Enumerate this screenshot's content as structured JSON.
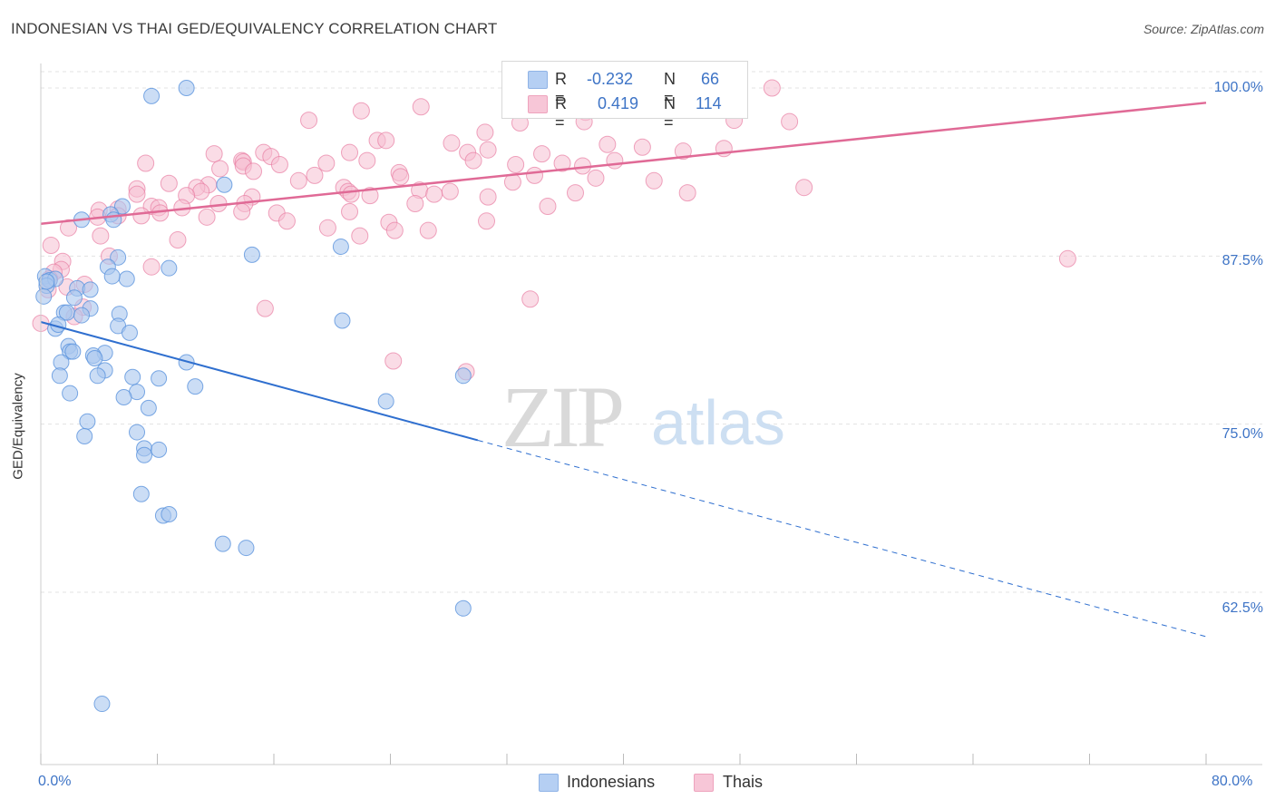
{
  "title": "INDONESIAN VS THAI GED/EQUIVALENCY CORRELATION CHART",
  "source": "Source: ZipAtlas.com",
  "watermark": {
    "zip": "ZIP",
    "atlas": "atlas"
  },
  "colors": {
    "blue": "#5b93dd",
    "blue_fill": "#a9c7ee",
    "blue_line": "#2f6fcf",
    "pink": "#e87ea3",
    "pink_fill": "#f5bfd2",
    "pink_line": "#e06a96",
    "axis_text": "#3e74c6",
    "grid": "#e3e3e3"
  },
  "legend": {
    "r_label": "R =",
    "n_label": "N =",
    "rows": [
      {
        "r": "-0.232",
        "n": "66"
      },
      {
        "r": "0.419",
        "n": "114"
      }
    ]
  },
  "chart_data": {
    "type": "scatter",
    "title": "INDONESIAN VS THAI GED/EQUIVALENCY CORRELATION CHART",
    "xlabel": "",
    "ylabel": "GED/Equivalency",
    "xlim": [
      0,
      80
    ],
    "ylim": [
      52,
      100.5
    ],
    "x_tick_labels": [
      "0.0%",
      "80.0%"
    ],
    "y_tick_values": [
      62.5,
      75,
      87.5,
      100
    ],
    "y_tick_labels": [
      "62.5%",
      "75.0%",
      "87.5%",
      "100.0%"
    ],
    "grid": "horizontal dashed",
    "legend_position": "top-center",
    "series": [
      {
        "name": "Indonesians",
        "color": "#5b93dd",
        "trend": {
          "x0": 0,
          "y0": 82.6,
          "x1": 30,
          "y1": 73.8,
          "dashed_to_x": 80,
          "dashed_to_y": 59.2
        },
        "points": [
          [
            7.6,
            99.4
          ],
          [
            10.0,
            100.0
          ],
          [
            12.6,
            92.8
          ],
          [
            5.6,
            91.2
          ],
          [
            4.8,
            90.6
          ],
          [
            2.8,
            90.2
          ],
          [
            5.0,
            90.2
          ],
          [
            14.5,
            87.6
          ],
          [
            20.6,
            88.2
          ],
          [
            5.3,
            87.4
          ],
          [
            4.6,
            86.7
          ],
          [
            8.8,
            86.6
          ],
          [
            0.3,
            86.0
          ],
          [
            0.6,
            85.7
          ],
          [
            1.0,
            85.8
          ],
          [
            5.9,
            85.8
          ],
          [
            4.9,
            86.0
          ],
          [
            0.4,
            85.3
          ],
          [
            2.5,
            85.1
          ],
          [
            3.4,
            85.0
          ],
          [
            0.2,
            84.5
          ],
          [
            2.3,
            84.4
          ],
          [
            3.4,
            83.6
          ],
          [
            1.6,
            83.3
          ],
          [
            1.8,
            83.3
          ],
          [
            2.8,
            83.1
          ],
          [
            5.4,
            83.2
          ],
          [
            20.7,
            82.7
          ],
          [
            5.3,
            82.3
          ],
          [
            1.0,
            82.1
          ],
          [
            6.1,
            81.8
          ],
          [
            1.9,
            80.8
          ],
          [
            2.0,
            80.4
          ],
          [
            2.2,
            80.4
          ],
          [
            4.4,
            80.3
          ],
          [
            3.6,
            80.1
          ],
          [
            3.7,
            79.9
          ],
          [
            1.4,
            79.6
          ],
          [
            10.0,
            79.6
          ],
          [
            4.4,
            79.0
          ],
          [
            1.3,
            78.6
          ],
          [
            3.9,
            78.6
          ],
          [
            6.3,
            78.5
          ],
          [
            8.1,
            78.4
          ],
          [
            29.0,
            78.6
          ],
          [
            10.6,
            77.8
          ],
          [
            2.0,
            77.3
          ],
          [
            6.6,
            77.4
          ],
          [
            5.7,
            77.0
          ],
          [
            23.7,
            76.7
          ],
          [
            7.4,
            76.2
          ],
          [
            3.2,
            75.2
          ],
          [
            6.6,
            74.4
          ],
          [
            3.0,
            74.1
          ],
          [
            7.1,
            73.2
          ],
          [
            8.1,
            73.1
          ],
          [
            7.1,
            72.7
          ],
          [
            6.9,
            69.8
          ],
          [
            8.4,
            68.2
          ],
          [
            8.8,
            68.3
          ],
          [
            12.5,
            66.1
          ],
          [
            14.1,
            65.8
          ],
          [
            29.0,
            61.3
          ],
          [
            4.2,
            54.2
          ],
          [
            0.4,
            85.6
          ],
          [
            1.2,
            82.4
          ]
        ]
      },
      {
        "name": "Thais",
        "color": "#e87ea3",
        "trend": {
          "x0": 0,
          "y0": 89.9,
          "x1": 80,
          "y1": 98.9
        },
        "points": [
          [
            50.2,
            100.0
          ],
          [
            35.6,
            98.7
          ],
          [
            26.1,
            98.6
          ],
          [
            37.4,
            98.2
          ],
          [
            38.3,
            98.5
          ],
          [
            47.2,
            98.5
          ],
          [
            18.4,
            97.6
          ],
          [
            32.9,
            97.4
          ],
          [
            37.3,
            97.5
          ],
          [
            51.4,
            97.5
          ],
          [
            47.6,
            97.6
          ],
          [
            30.5,
            96.7
          ],
          [
            23.1,
            96.1
          ],
          [
            23.7,
            96.1
          ],
          [
            28.2,
            95.9
          ],
          [
            38.9,
            95.8
          ],
          [
            41.3,
            95.6
          ],
          [
            46.9,
            95.5
          ],
          [
            30.7,
            95.4
          ],
          [
            29.3,
            95.2
          ],
          [
            15.3,
            95.2
          ],
          [
            21.2,
            95.2
          ],
          [
            11.9,
            95.1
          ],
          [
            34.4,
            95.1
          ],
          [
            15.8,
            94.9
          ],
          [
            13.8,
            94.6
          ],
          [
            29.7,
            94.6
          ],
          [
            13.9,
            94.5
          ],
          [
            39.4,
            94.6
          ],
          [
            22.4,
            94.6
          ],
          [
            19.6,
            94.4
          ],
          [
            35.8,
            94.4
          ],
          [
            7.2,
            94.4
          ],
          [
            16.4,
            94.3
          ],
          [
            13.9,
            94.2
          ],
          [
            32.6,
            94.3
          ],
          [
            37.2,
            94.2
          ],
          [
            12.3,
            94.0
          ],
          [
            14.6,
            93.8
          ],
          [
            24.6,
            93.7
          ],
          [
            18.8,
            93.5
          ],
          [
            33.9,
            93.5
          ],
          [
            24.7,
            93.4
          ],
          [
            17.7,
            93.1
          ],
          [
            38.1,
            93.3
          ],
          [
            32.4,
            93.0
          ],
          [
            8.8,
            92.9
          ],
          [
            11.5,
            92.8
          ],
          [
            10.7,
            92.6
          ],
          [
            6.6,
            92.5
          ],
          [
            20.8,
            92.6
          ],
          [
            21.1,
            92.3
          ],
          [
            21.3,
            92.1
          ],
          [
            26.0,
            92.4
          ],
          [
            28.1,
            92.3
          ],
          [
            27.0,
            92.1
          ],
          [
            6.6,
            92.1
          ],
          [
            11.0,
            92.3
          ],
          [
            10.0,
            92.0
          ],
          [
            36.7,
            92.2
          ],
          [
            22.6,
            92.0
          ],
          [
            30.7,
            91.9
          ],
          [
            14.5,
            91.9
          ],
          [
            14.0,
            91.4
          ],
          [
            25.7,
            91.4
          ],
          [
            12.2,
            91.4
          ],
          [
            34.8,
            91.2
          ],
          [
            7.6,
            91.2
          ],
          [
            8.1,
            91.1
          ],
          [
            9.7,
            91.1
          ],
          [
            4.0,
            90.9
          ],
          [
            5.3,
            91.0
          ],
          [
            5.3,
            90.5
          ],
          [
            13.8,
            90.8
          ],
          [
            16.2,
            90.7
          ],
          [
            8.2,
            90.7
          ],
          [
            21.2,
            90.8
          ],
          [
            3.9,
            90.4
          ],
          [
            6.9,
            90.5
          ],
          [
            11.4,
            90.4
          ],
          [
            16.9,
            90.1
          ],
          [
            23.9,
            90.0
          ],
          [
            30.6,
            90.1
          ],
          [
            19.7,
            89.6
          ],
          [
            24.3,
            89.4
          ],
          [
            26.6,
            89.4
          ],
          [
            21.9,
            89.0
          ],
          [
            4.1,
            89.0
          ],
          [
            1.9,
            89.6
          ],
          [
            9.4,
            88.7
          ],
          [
            0.7,
            88.3
          ],
          [
            4.7,
            87.5
          ],
          [
            1.5,
            87.1
          ],
          [
            70.5,
            87.3
          ],
          [
            7.6,
            86.7
          ],
          [
            1.4,
            86.5
          ],
          [
            0.9,
            86.3
          ],
          [
            0.6,
            85.8
          ],
          [
            3.0,
            85.4
          ],
          [
            33.6,
            84.3
          ],
          [
            15.4,
            83.6
          ],
          [
            2.9,
            83.7
          ],
          [
            0.0,
            82.5
          ],
          [
            24.2,
            79.7
          ],
          [
            29.2,
            78.9
          ],
          [
            0.5,
            85.0
          ],
          [
            1.8,
            85.2
          ],
          [
            2.3,
            83.0
          ],
          [
            33.2,
            98.4
          ],
          [
            22.0,
            98.3
          ],
          [
            44.1,
            95.3
          ],
          [
            44.4,
            92.2
          ],
          [
            42.1,
            93.1
          ],
          [
            52.4,
            92.6
          ]
        ]
      }
    ]
  },
  "xaxis": {
    "left_label": "0.0%",
    "right_label": "80.0%"
  },
  "bottom_legend": [
    {
      "label": "Indonesians"
    },
    {
      "label": "Thais"
    }
  ]
}
